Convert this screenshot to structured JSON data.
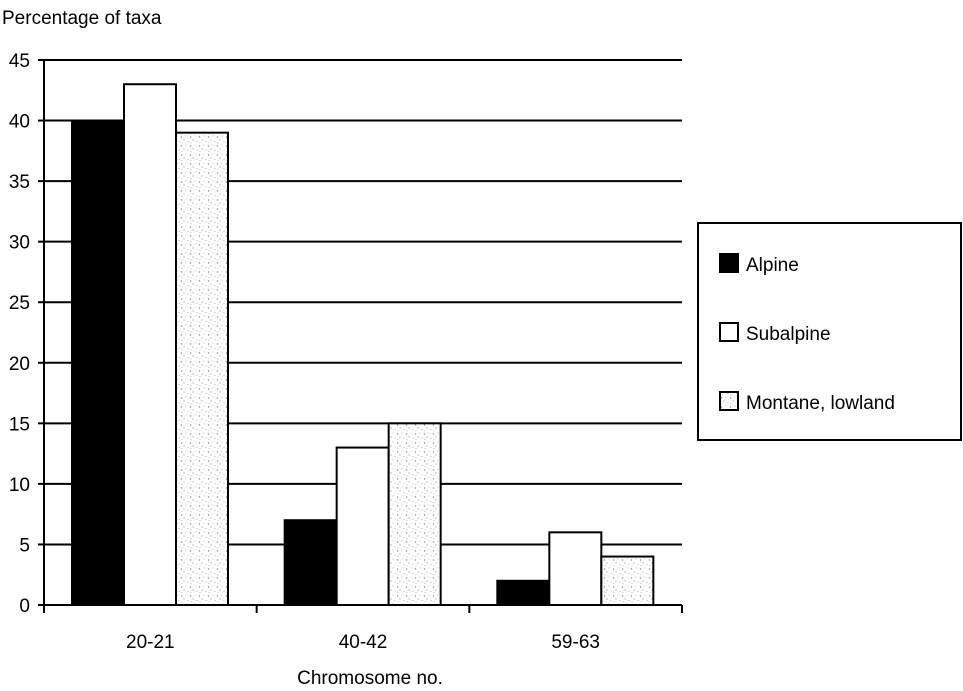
{
  "chart_data": {
    "type": "bar",
    "ylabel": "Percentage of taxa",
    "xlabel": "Chromosome no.",
    "categories": [
      "20-21",
      "40-42",
      "59-63"
    ],
    "ylim": [
      0,
      45
    ],
    "yticks": [
      0,
      5,
      10,
      15,
      20,
      25,
      30,
      35,
      40,
      45
    ],
    "grid": true,
    "legend_position": "right",
    "series": [
      {
        "name": "Alpine",
        "values": [
          40,
          7,
          2
        ],
        "fill": "black"
      },
      {
        "name": "Subalpine",
        "values": [
          43,
          13,
          6
        ],
        "fill": "white"
      },
      {
        "name": "Montane, lowland",
        "values": [
          39,
          15,
          4
        ],
        "fill": "stippled"
      }
    ],
    "colors": {
      "ink": "#000000",
      "paper": "#ffffff",
      "stipple": "#9a9a9a"
    }
  }
}
